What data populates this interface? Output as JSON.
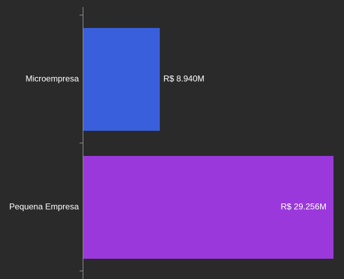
{
  "chart_data": {
    "type": "bar",
    "orientation": "horizontal",
    "categories": [
      "Microempresa",
      "Pequena Empresa"
    ],
    "values": [
      8.94,
      29.256
    ],
    "value_labels": [
      "R$ 8.940M",
      "R$ 29.256M"
    ],
    "colors": [
      "#3a5fdc",
      "#9b38dc"
    ],
    "xlim": [
      0,
      29.256
    ],
    "title": "",
    "xlabel": "",
    "ylabel": "",
    "grid": false,
    "legend": "none"
  },
  "colors": {
    "background": "#2a2a2a",
    "axis": "#8a8a8a",
    "text": "#ffffff"
  }
}
